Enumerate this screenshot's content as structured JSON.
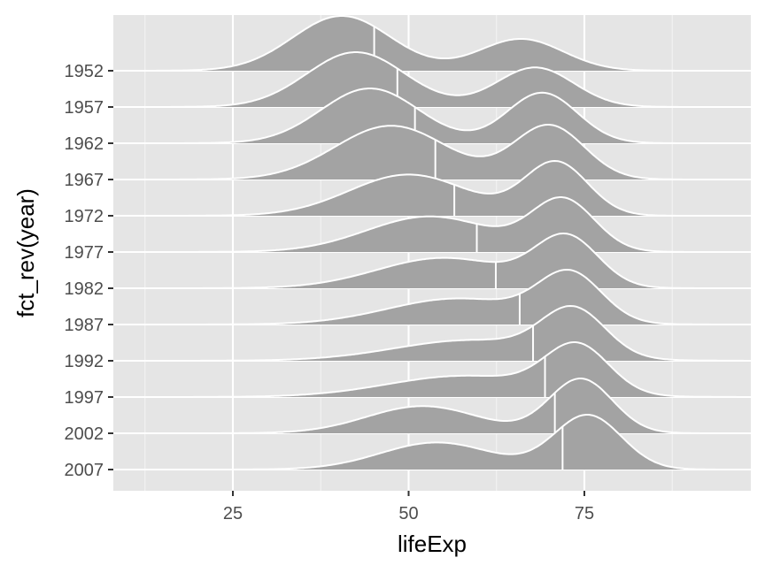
{
  "chart_data": {
    "type": "ridgeline",
    "title": "",
    "xlabel": "lifeExp",
    "ylabel": "fct_rev(year)",
    "xlim": [
      8,
      98
    ],
    "x_ticks": [
      25,
      50,
      75
    ],
    "categories": [
      "1952",
      "1957",
      "1962",
      "1967",
      "1972",
      "1977",
      "1982",
      "1987",
      "1992",
      "1997",
      "2002",
      "2007"
    ],
    "medians": [
      45.1,
      48.4,
      50.9,
      53.8,
      56.5,
      59.7,
      62.4,
      65.8,
      67.7,
      69.4,
      70.8,
      71.9
    ],
    "density_bumps": [
      [
        {
          "mu": 40.5,
          "sd": 7.0,
          "w": 1.0
        },
        {
          "mu": 66.0,
          "sd": 6.0,
          "w": 0.58
        }
      ],
      [
        {
          "mu": 42.5,
          "sd": 7.0,
          "w": 1.0
        },
        {
          "mu": 68.0,
          "sd": 5.5,
          "w": 0.72
        }
      ],
      [
        {
          "mu": 44.5,
          "sd": 7.0,
          "w": 1.0
        },
        {
          "mu": 69.0,
          "sd": 5.0,
          "w": 0.92
        }
      ],
      [
        {
          "mu": 47.5,
          "sd": 8.0,
          "w": 0.95
        },
        {
          "mu": 70.0,
          "sd": 5.0,
          "w": 0.95
        }
      ],
      [
        {
          "mu": 50.0,
          "sd": 8.5,
          "w": 0.78
        },
        {
          "mu": 71.0,
          "sd": 4.5,
          "w": 1.0
        }
      ],
      [
        {
          "mu": 53.0,
          "sd": 9.0,
          "w": 0.7
        },
        {
          "mu": 72.0,
          "sd": 4.5,
          "w": 1.0
        }
      ],
      [
        {
          "mu": 55.0,
          "sd": 9.5,
          "w": 0.62
        },
        {
          "mu": 72.5,
          "sd": 4.5,
          "w": 1.0
        }
      ],
      [
        {
          "mu": 57.0,
          "sd": 10.0,
          "w": 0.55
        },
        {
          "mu": 73.0,
          "sd": 4.5,
          "w": 1.0
        }
      ],
      [
        {
          "mu": 59.0,
          "sd": 11.0,
          "w": 0.45
        },
        {
          "mu": 73.5,
          "sd": 4.5,
          "w": 1.0
        }
      ],
      [
        {
          "mu": 58.0,
          "sd": 11.0,
          "w": 0.45
        },
        {
          "mu": 74.0,
          "sd": 4.5,
          "w": 1.0
        }
      ],
      [
        {
          "mu": 52.0,
          "sd": 8.0,
          "w": 0.5
        },
        {
          "mu": 74.5,
          "sd": 4.5,
          "w": 1.0
        }
      ],
      [
        {
          "mu": 54.0,
          "sd": 8.0,
          "w": 0.5
        },
        {
          "mu": 75.5,
          "sd": 4.8,
          "w": 1.0
        }
      ]
    ],
    "fill_color": "#a3a3a3",
    "outline_color": "#ffffff",
    "panel_background": "#e5e5e5",
    "grid": true,
    "legend": "none"
  }
}
